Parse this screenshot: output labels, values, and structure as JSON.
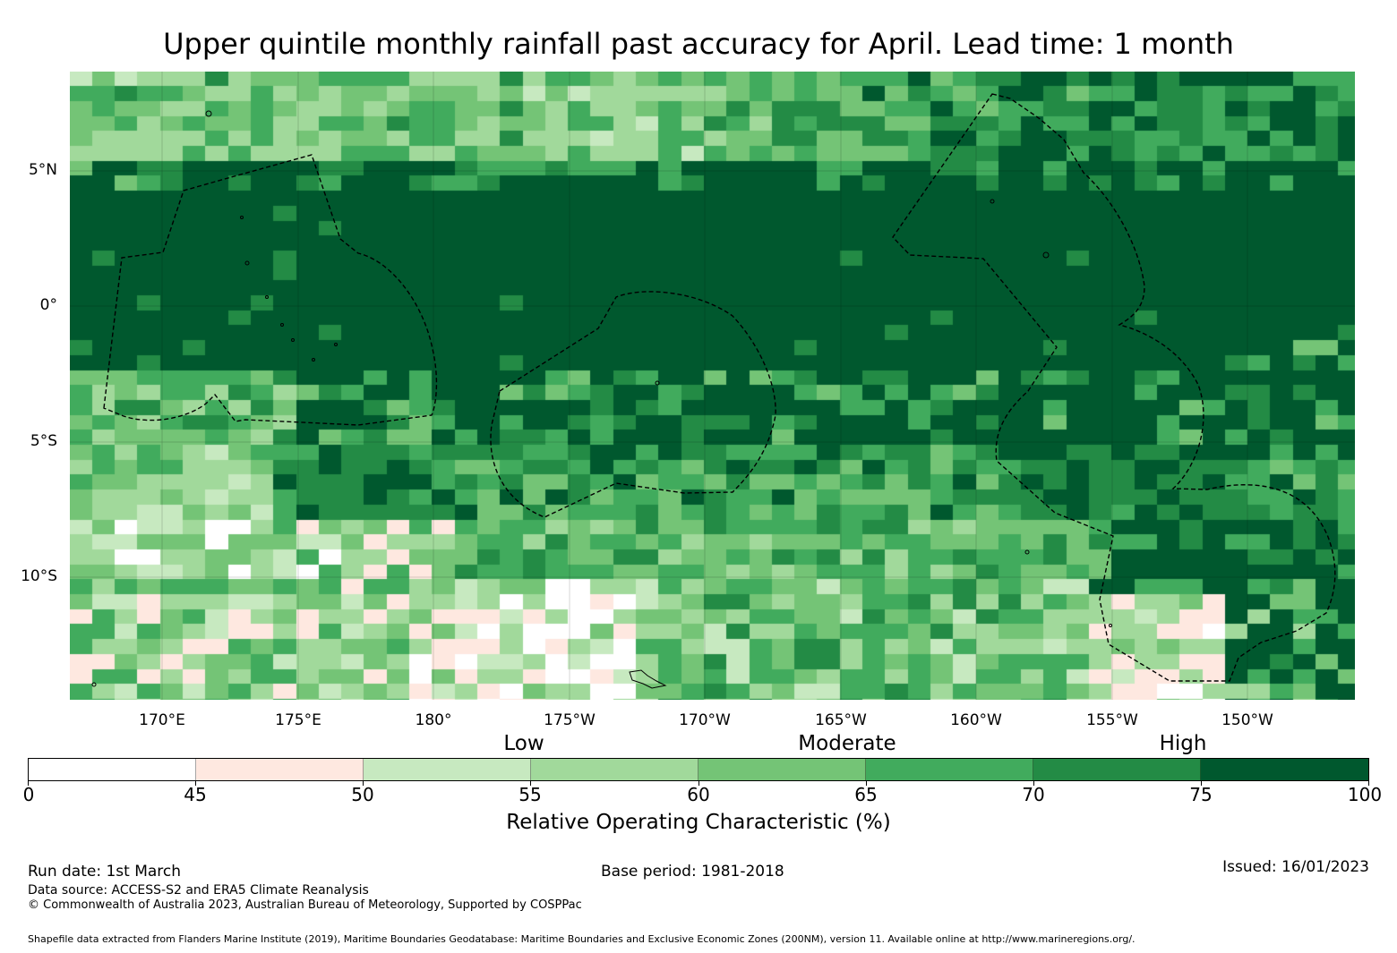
{
  "title": "Upper quintile monthly rainfall past accuracy for April. Lead time: 1 month",
  "map": {
    "lat_labels": [
      "5°N",
      "0°",
      "5°S",
      "10°S"
    ],
    "lon_labels": [
      "170°E",
      "175°E",
      "180°",
      "175°W",
      "170°W",
      "165°W",
      "160°W",
      "155°W",
      "150°W"
    ],
    "region": {
      "lon_range_east": [
        166.7,
        213.8
      ],
      "lat_range": [
        -14.5,
        8.7
      ]
    },
    "grid_resolution_deg": 0.83,
    "overall_pattern": "High skill (dark green) across equatorial band; lower skill (pale green, pink, white) in southern subtropics"
  },
  "categories": [
    "Low",
    "Moderate",
    "High"
  ],
  "colorbar": {
    "ticks": [
      "0",
      "45",
      "50",
      "55",
      "60",
      "65",
      "70",
      "75",
      "100"
    ],
    "colors": [
      "#ffffff",
      "#fee8e0",
      "#c7e9c0",
      "#a1d99b",
      "#74c476",
      "#41ab5d",
      "#238b45",
      "#00582e"
    ],
    "label": "Relative Operating Characteristic (%)"
  },
  "footer": {
    "run_date": "Run date: 1st March",
    "base_period": "Base period: 1981-2018",
    "issued": "Issued: 16/01/2023",
    "data_source": "Data source: ACCESS-S2 and ERA5 Climate Reanalysis",
    "copyright": "© Commonwealth of Australia 2023, Australian Bureau of Meteorology, Supported by COSPPac",
    "shapefile": "Shapefile data extracted from Flanders Marine Institute (2019), Maritime Boundaries Geodatabase: Maritime Boundaries and Exclusive Economic Zones (200NM), version 11. Available online at http://www.marineregions.org/."
  }
}
